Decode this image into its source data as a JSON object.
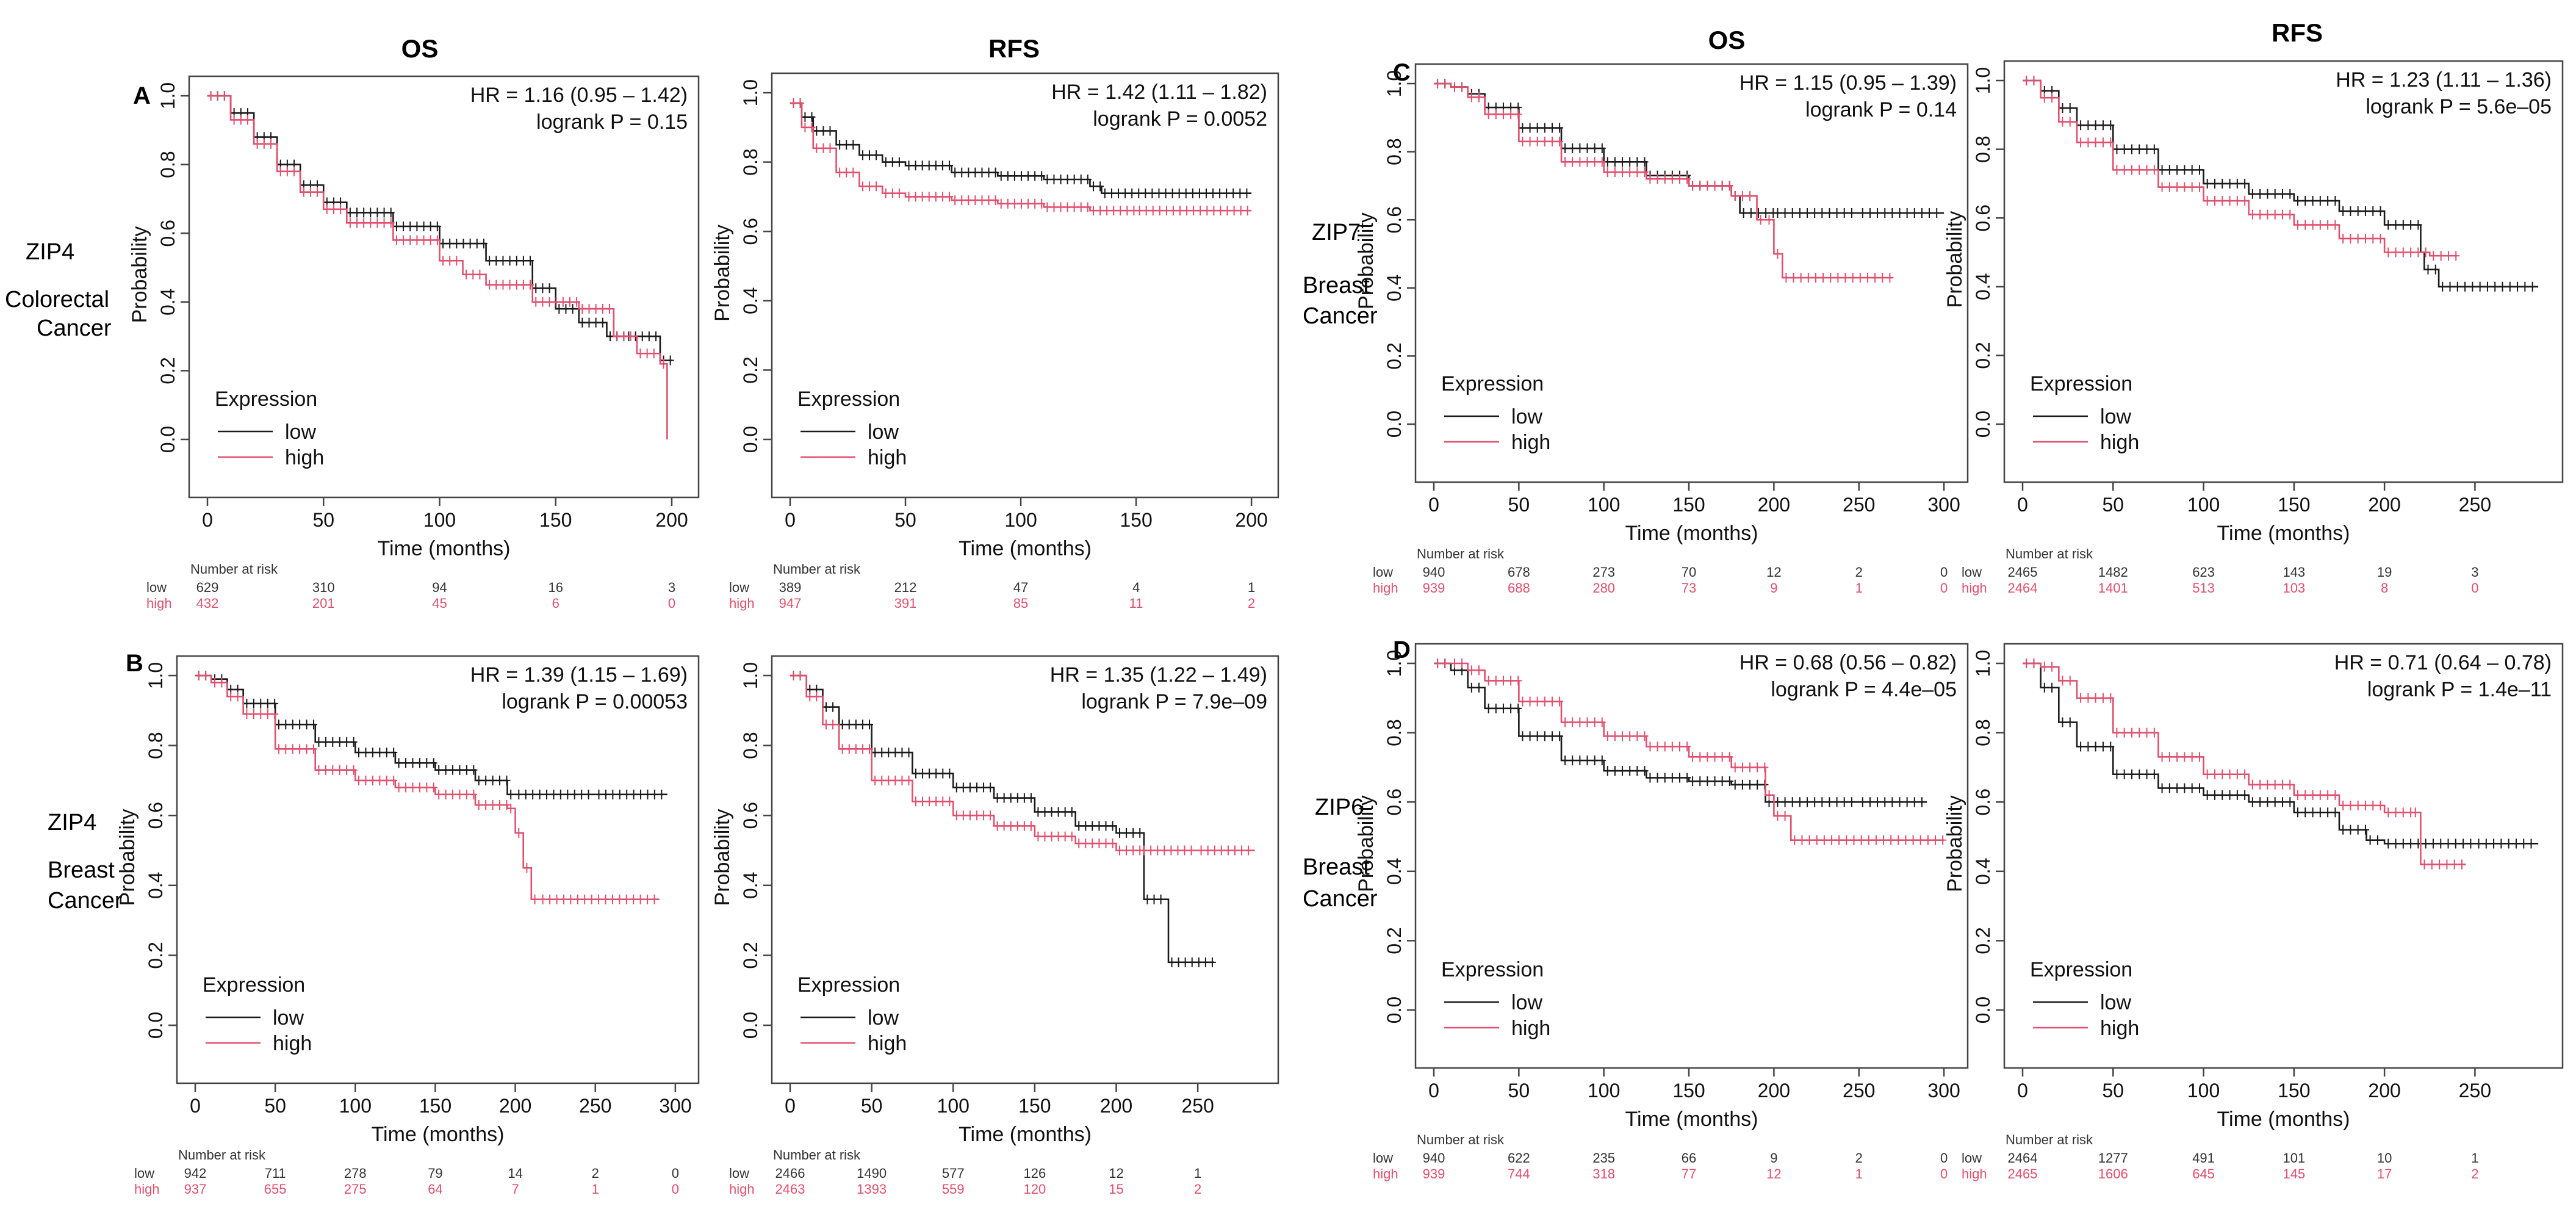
{
  "figure": {
    "column_headers": [
      {
        "label": "OS"
      },
      {
        "label": "RFS"
      },
      {
        "label": "OS"
      },
      {
        "label": "RFS"
      }
    ],
    "panel_letters": [
      "A",
      "B",
      "C",
      "D"
    ],
    "row_labels": [
      {
        "gene": "ZIP4",
        "cancer_lines": [
          "Colorectal",
          "Cancer"
        ]
      },
      {
        "gene": "ZIP4",
        "cancer_lines": [
          "Breast",
          "Cancer"
        ]
      },
      {
        "gene": "ZIP7",
        "cancer_lines": [
          "Breast",
          "Cancer"
        ]
      },
      {
        "gene": "ZIP6",
        "cancer_lines": [
          "Breast",
          "Cancer"
        ]
      }
    ],
    "colors": {
      "low": "#1a1a1a",
      "high": "#e0506e",
      "frame": "#444444",
      "text": "#111111"
    },
    "ylabel": "Probability",
    "xlabel": "Time (months)",
    "legend_title": "Expression",
    "legend_low": "low",
    "legend_high": "high",
    "risk_title": "Number at risk",
    "risk_low_label": "low",
    "risk_high_label": "high"
  },
  "chart_data": [
    {
      "id": "A-OS",
      "type": "line",
      "group": "Colorectal cancer ZIP4",
      "endpoint": "OS",
      "hr_text": "HR = 1.16 (0.95 – 1.42)",
      "p_text": "logrank P = 0.15",
      "xlim": [
        0,
        205
      ],
      "ylim": [
        0,
        1
      ],
      "xticks": [
        0,
        50,
        100,
        150,
        200
      ],
      "yticks": [
        0.0,
        0.2,
        0.4,
        0.6,
        0.8,
        1.0
      ],
      "series": [
        {
          "name": "low",
          "x": [
            0,
            10,
            20,
            30,
            40,
            50,
            60,
            80,
            100,
            120,
            140,
            150,
            160,
            172,
            180,
            195,
            200
          ],
          "y": [
            1.0,
            0.95,
            0.88,
            0.8,
            0.74,
            0.69,
            0.66,
            0.62,
            0.57,
            0.52,
            0.44,
            0.38,
            0.34,
            0.3,
            0.3,
            0.23,
            0.23
          ]
        },
        {
          "name": "high",
          "x": [
            0,
            10,
            20,
            30,
            40,
            50,
            60,
            80,
            100,
            110,
            120,
            140,
            160,
            175,
            185,
            195,
            197,
            198
          ],
          "y": [
            1.0,
            0.93,
            0.86,
            0.78,
            0.72,
            0.67,
            0.63,
            0.58,
            0.52,
            0.48,
            0.45,
            0.4,
            0.38,
            0.3,
            0.25,
            0.22,
            0.22,
            0.0
          ]
        }
      ],
      "risk_times": [
        0,
        50,
        100,
        150,
        200
      ],
      "risk_low": [
        "629",
        "310",
        "94",
        "16",
        "3"
      ],
      "risk_high": [
        "432",
        "201",
        "45",
        "6",
        "0"
      ]
    },
    {
      "id": "A-RFS",
      "type": "line",
      "group": "Colorectal cancer ZIP4",
      "endpoint": "RFS",
      "hr_text": "HR = 1.42 (1.11 – 1.82)",
      "p_text": "logrank P = 0.0052",
      "xlim": [
        0,
        205
      ],
      "ylim": [
        0,
        1
      ],
      "xticks": [
        0,
        50,
        100,
        150,
        200
      ],
      "yticks": [
        0.0,
        0.2,
        0.4,
        0.6,
        0.8,
        1.0
      ],
      "series": [
        {
          "name": "low",
          "x": [
            0,
            5,
            10,
            20,
            30,
            40,
            50,
            70,
            90,
            110,
            130,
            135,
            200
          ],
          "y": [
            0.97,
            0.93,
            0.89,
            0.85,
            0.82,
            0.8,
            0.79,
            0.77,
            0.76,
            0.75,
            0.73,
            0.71,
            0.71
          ]
        },
        {
          "name": "high",
          "x": [
            0,
            5,
            10,
            20,
            30,
            40,
            50,
            70,
            90,
            110,
            130,
            150,
            200
          ],
          "y": [
            0.97,
            0.9,
            0.84,
            0.77,
            0.73,
            0.71,
            0.7,
            0.69,
            0.68,
            0.67,
            0.66,
            0.66,
            0.66
          ]
        }
      ],
      "risk_times": [
        0,
        50,
        100,
        150,
        200
      ],
      "risk_low": [
        "389",
        "212",
        "47",
        "4",
        "1"
      ],
      "risk_high": [
        "947",
        "391",
        "85",
        "11",
        "2"
      ]
    },
    {
      "id": "B-OS",
      "type": "line",
      "group": "Breast cancer ZIP4",
      "endpoint": "OS",
      "hr_text": "HR = 1.39 (1.15 – 1.69)",
      "p_text": "logrank P = 0.00053",
      "xlim": [
        0,
        305
      ],
      "ylim": [
        0,
        1
      ],
      "xticks": [
        0,
        50,
        100,
        150,
        200,
        250,
        300
      ],
      "yticks": [
        0.0,
        0.2,
        0.4,
        0.6,
        0.8,
        1.0
      ],
      "series": [
        {
          "name": "low",
          "x": [
            0,
            10,
            20,
            30,
            50,
            75,
            100,
            125,
            150,
            175,
            195,
            200,
            250,
            295
          ],
          "y": [
            1.0,
            0.99,
            0.96,
            0.92,
            0.86,
            0.81,
            0.78,
            0.75,
            0.73,
            0.7,
            0.66,
            0.66,
            0.66,
            0.66
          ]
        },
        {
          "name": "high",
          "x": [
            0,
            10,
            20,
            30,
            50,
            75,
            100,
            125,
            150,
            175,
            195,
            200,
            205,
            210,
            215,
            290
          ],
          "y": [
            1.0,
            0.98,
            0.94,
            0.89,
            0.79,
            0.73,
            0.7,
            0.68,
            0.66,
            0.63,
            0.62,
            0.55,
            0.45,
            0.36,
            0.36,
            0.36
          ]
        }
      ],
      "risk_times": [
        0,
        50,
        100,
        150,
        200,
        250,
        300
      ],
      "risk_low": [
        "942",
        "711",
        "278",
        "79",
        "14",
        "2",
        "0"
      ],
      "risk_high": [
        "937",
        "655",
        "275",
        "64",
        "7",
        "1",
        "0"
      ]
    },
    {
      "id": "B-RFS",
      "type": "line",
      "group": "Breast cancer ZIP4",
      "endpoint": "RFS",
      "hr_text": "HR = 1.35 (1.22 – 1.49)",
      "p_text": "logrank P = 7.9e–09",
      "xlim": [
        0,
        290
      ],
      "ylim": [
        0,
        1
      ],
      "xticks": [
        0,
        50,
        100,
        150,
        200,
        250
      ],
      "yticks": [
        0.0,
        0.2,
        0.4,
        0.6,
        0.8,
        1.0
      ],
      "series": [
        {
          "name": "low",
          "x": [
            0,
            10,
            20,
            30,
            50,
            75,
            100,
            125,
            150,
            175,
            200,
            215,
            217,
            230,
            232,
            260
          ],
          "y": [
            1.0,
            0.96,
            0.91,
            0.86,
            0.78,
            0.72,
            0.68,
            0.65,
            0.61,
            0.57,
            0.55,
            0.55,
            0.36,
            0.36,
            0.18,
            0.18
          ]
        },
        {
          "name": "high",
          "x": [
            0,
            10,
            20,
            30,
            50,
            75,
            100,
            125,
            150,
            175,
            200,
            215,
            250,
            285
          ],
          "y": [
            1.0,
            0.94,
            0.86,
            0.79,
            0.7,
            0.64,
            0.6,
            0.57,
            0.54,
            0.52,
            0.5,
            0.5,
            0.5,
            0.5
          ]
        }
      ],
      "risk_times": [
        0,
        50,
        100,
        150,
        200,
        250
      ],
      "risk_low": [
        "2466",
        "1490",
        "577",
        "126",
        "12",
        "1"
      ],
      "risk_high": [
        "2463",
        "1393",
        "559",
        "120",
        "15",
        "2"
      ]
    },
    {
      "id": "C-OS",
      "type": "line",
      "group": "Breast cancer ZIP7",
      "endpoint": "OS",
      "hr_text": "HR = 1.15 (0.95 – 1.39)",
      "p_text": "logrank P = 0.14",
      "xlim": [
        0,
        305
      ],
      "ylim": [
        0,
        1
      ],
      "xticks": [
        0,
        50,
        100,
        150,
        200,
        250,
        300
      ],
      "yticks": [
        0.0,
        0.2,
        0.4,
        0.6,
        0.8,
        1.0
      ],
      "series": [
        {
          "name": "low",
          "x": [
            0,
            10,
            20,
            30,
            50,
            75,
            100,
            125,
            150,
            175,
            180,
            200,
            250,
            300
          ],
          "y": [
            1.0,
            0.99,
            0.97,
            0.93,
            0.87,
            0.81,
            0.77,
            0.73,
            0.7,
            0.67,
            0.62,
            0.62,
            0.62,
            0.62
          ]
        },
        {
          "name": "high",
          "x": [
            0,
            10,
            20,
            30,
            50,
            75,
            100,
            125,
            150,
            175,
            190,
            195,
            200,
            205,
            270
          ],
          "y": [
            1.0,
            0.99,
            0.96,
            0.91,
            0.83,
            0.77,
            0.74,
            0.72,
            0.7,
            0.67,
            0.6,
            0.6,
            0.5,
            0.43,
            0.43
          ]
        }
      ],
      "risk_times": [
        0,
        50,
        100,
        150,
        200,
        250,
        300
      ],
      "risk_low": [
        "940",
        "678",
        "273",
        "70",
        "12",
        "2",
        "0"
      ],
      "risk_high": [
        "939",
        "688",
        "280",
        "73",
        "9",
        "1",
        "0"
      ]
    },
    {
      "id": "C-RFS",
      "type": "line",
      "group": "Breast cancer ZIP7",
      "endpoint": "RFS",
      "hr_text": "HR = 1.23 (1.11 – 1.36)",
      "p_text": "logrank P = 5.6e–05",
      "xlim": [
        0,
        290
      ],
      "ylim": [
        0,
        1
      ],
      "xticks": [
        0,
        50,
        100,
        150,
        200,
        250
      ],
      "yticks": [
        0.0,
        0.2,
        0.4,
        0.6,
        0.8,
        1.0
      ],
      "series": [
        {
          "name": "low",
          "x": [
            0,
            10,
            20,
            30,
            50,
            75,
            100,
            125,
            150,
            175,
            200,
            220,
            222,
            230,
            285
          ],
          "y": [
            1.0,
            0.97,
            0.92,
            0.87,
            0.8,
            0.74,
            0.7,
            0.67,
            0.65,
            0.62,
            0.58,
            0.5,
            0.45,
            0.4,
            0.4
          ]
        },
        {
          "name": "high",
          "x": [
            0,
            10,
            20,
            30,
            50,
            75,
            100,
            125,
            150,
            175,
            200,
            225,
            240
          ],
          "y": [
            1.0,
            0.95,
            0.88,
            0.82,
            0.74,
            0.69,
            0.65,
            0.61,
            0.58,
            0.54,
            0.5,
            0.49,
            0.49
          ]
        }
      ],
      "risk_times": [
        0,
        50,
        100,
        150,
        200,
        250
      ],
      "risk_low": [
        "2465",
        "1482",
        "623",
        "143",
        "19",
        "3"
      ],
      "risk_high": [
        "2464",
        "1401",
        "513",
        "103",
        "8",
        "0"
      ]
    },
    {
      "id": "D-OS",
      "type": "line",
      "group": "Breast cancer ZIP6",
      "endpoint": "OS",
      "hr_text": "HR = 0.68 (0.56 – 0.82)",
      "p_text": "logrank P = 4.4e–05",
      "xlim": [
        0,
        305
      ],
      "ylim": [
        0,
        1
      ],
      "xticks": [
        0,
        50,
        100,
        150,
        200,
        250,
        300
      ],
      "yticks": [
        0.0,
        0.2,
        0.4,
        0.6,
        0.8,
        1.0
      ],
      "series": [
        {
          "name": "low",
          "x": [
            0,
            10,
            20,
            30,
            50,
            75,
            100,
            125,
            150,
            175,
            195,
            200,
            250,
            290
          ],
          "y": [
            1.0,
            0.98,
            0.93,
            0.87,
            0.79,
            0.72,
            0.69,
            0.67,
            0.66,
            0.65,
            0.6,
            0.6,
            0.6,
            0.6
          ]
        },
        {
          "name": "high",
          "x": [
            0,
            10,
            20,
            30,
            50,
            75,
            100,
            125,
            150,
            175,
            195,
            200,
            210,
            300
          ],
          "y": [
            1.0,
            1.0,
            0.98,
            0.95,
            0.89,
            0.83,
            0.79,
            0.76,
            0.73,
            0.7,
            0.62,
            0.56,
            0.49,
            0.49
          ]
        }
      ],
      "risk_times": [
        0,
        50,
        100,
        150,
        200,
        250,
        300
      ],
      "risk_low": [
        "940",
        "622",
        "235",
        "66",
        "9",
        "2",
        "0"
      ],
      "risk_high": [
        "939",
        "744",
        "318",
        "77",
        "12",
        "1",
        "0"
      ]
    },
    {
      "id": "D-RFS",
      "type": "line",
      "group": "Breast cancer ZIP6",
      "endpoint": "RFS",
      "hr_text": "HR = 0.71 (0.64 – 0.78)",
      "p_text": "logrank P = 1.4e–11",
      "xlim": [
        0,
        290
      ],
      "ylim": [
        0,
        1
      ],
      "xticks": [
        0,
        50,
        100,
        150,
        200,
        250
      ],
      "yticks": [
        0.0,
        0.2,
        0.4,
        0.6,
        0.8,
        1.0
      ],
      "series": [
        {
          "name": "low",
          "x": [
            0,
            10,
            20,
            30,
            50,
            75,
            100,
            125,
            150,
            175,
            190,
            200,
            250,
            285
          ],
          "y": [
            1.0,
            0.93,
            0.83,
            0.76,
            0.68,
            0.64,
            0.62,
            0.6,
            0.57,
            0.52,
            0.49,
            0.48,
            0.48,
            0.48
          ]
        },
        {
          "name": "high",
          "x": [
            0,
            10,
            20,
            30,
            50,
            75,
            100,
            125,
            150,
            175,
            200,
            215,
            220,
            245
          ],
          "y": [
            1.0,
            0.99,
            0.95,
            0.9,
            0.8,
            0.73,
            0.68,
            0.65,
            0.62,
            0.59,
            0.57,
            0.57,
            0.42,
            0.42
          ]
        }
      ],
      "risk_times": [
        0,
        50,
        100,
        150,
        200,
        250
      ],
      "risk_low": [
        "2464",
        "1277",
        "491",
        "101",
        "10",
        "1"
      ],
      "risk_high": [
        "2465",
        "1606",
        "645",
        "145",
        "17",
        "2"
      ]
    }
  ]
}
